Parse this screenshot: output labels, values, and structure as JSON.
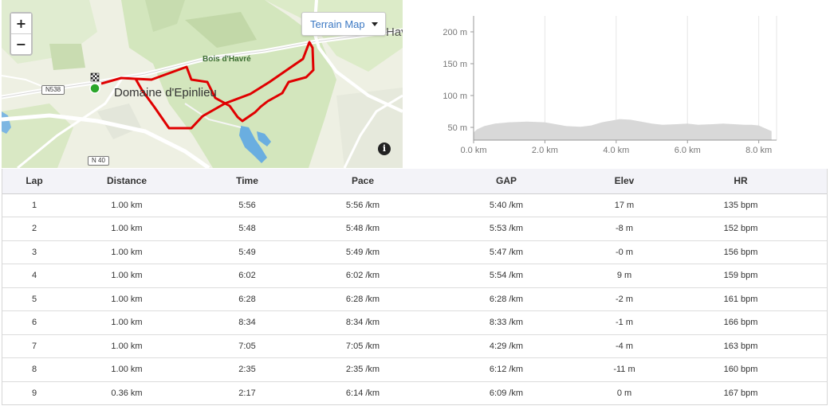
{
  "map": {
    "zoom_in": "+",
    "zoom_out": "−",
    "terrain_label": "Terrain Map",
    "info": "i",
    "labels": {
      "domaine": "Domaine d'Epinlieu",
      "bois": "Bois d'Havré",
      "havre": "Havré"
    },
    "shields": {
      "n538": "N538",
      "n40": "N 40"
    },
    "colors": {
      "route": "#e00000",
      "start": "#2ba62b",
      "water": "#5fa8dc",
      "forest": "#cfe3b7"
    }
  },
  "chart_data": {
    "type": "area",
    "xlabel": "",
    "ylabel": "",
    "xlim": [
      0,
      8.5
    ],
    "ylim": [
      30,
      225
    ],
    "x_ticks": [
      0,
      2,
      4,
      6,
      8
    ],
    "x_tick_labels": [
      "0.0 km",
      "2.0 km",
      "4.0 km",
      "6.0 km",
      "8.0 km"
    ],
    "y_ticks": [
      50,
      100,
      150,
      200
    ],
    "y_tick_labels": [
      "50 m",
      "100 m",
      "150 m",
      "200 m"
    ],
    "grid": true,
    "fill_color": "#d8d8d8",
    "x": [
      0,
      0.1,
      0.3,
      0.6,
      1.0,
      1.5,
      2.0,
      2.3,
      2.6,
      3.0,
      3.3,
      3.6,
      3.9,
      4.1,
      4.4,
      4.7,
      5.0,
      5.3,
      5.7,
      6.0,
      6.3,
      6.7,
      7.0,
      7.3,
      7.6,
      7.8,
      8.0,
      8.2,
      8.36
    ],
    "y": [
      42,
      47,
      52,
      56,
      58,
      59,
      58,
      55,
      52,
      51,
      53,
      58,
      61,
      63,
      62,
      59,
      56,
      54,
      55,
      56,
      54,
      55,
      56,
      55,
      54,
      54,
      53,
      48,
      44
    ]
  },
  "table": {
    "headers": {
      "lap": "Lap",
      "distance": "Distance",
      "time": "Time",
      "pace": "Pace",
      "gap": "GAP",
      "elev": "Elev",
      "hr": "HR"
    },
    "rows": [
      {
        "lap": "1",
        "distance": "1.00 km",
        "time": "5:56",
        "pace": "5:56 /km",
        "gap": "5:40 /km",
        "elev": "17 m",
        "hr": "135 bpm"
      },
      {
        "lap": "2",
        "distance": "1.00 km",
        "time": "5:48",
        "pace": "5:48 /km",
        "gap": "5:53 /km",
        "elev": "-8 m",
        "hr": "152 bpm"
      },
      {
        "lap": "3",
        "distance": "1.00 km",
        "time": "5:49",
        "pace": "5:49 /km",
        "gap": "5:47 /km",
        "elev": "-0 m",
        "hr": "156 bpm"
      },
      {
        "lap": "4",
        "distance": "1.00 km",
        "time": "6:02",
        "pace": "6:02 /km",
        "gap": "5:54 /km",
        "elev": "9 m",
        "hr": "159 bpm"
      },
      {
        "lap": "5",
        "distance": "1.00 km",
        "time": "6:28",
        "pace": "6:28 /km",
        "gap": "6:28 /km",
        "elev": "-2 m",
        "hr": "161 bpm"
      },
      {
        "lap": "6",
        "distance": "1.00 km",
        "time": "8:34",
        "pace": "8:34 /km",
        "gap": "8:33 /km",
        "elev": "-1 m",
        "hr": "166 bpm"
      },
      {
        "lap": "7",
        "distance": "1.00 km",
        "time": "7:05",
        "pace": "7:05 /km",
        "gap": "4:29 /km",
        "elev": "-4 m",
        "hr": "163 bpm"
      },
      {
        "lap": "8",
        "distance": "1.00 km",
        "time": "2:35",
        "pace": "2:35 /km",
        "gap": "6:12 /km",
        "elev": "-11 m",
        "hr": "160 bpm"
      },
      {
        "lap": "9",
        "distance": "0.36 km",
        "time": "2:17",
        "pace": "6:14 /km",
        "gap": "6:09 /km",
        "elev": "0 m",
        "hr": "167 bpm"
      }
    ]
  }
}
